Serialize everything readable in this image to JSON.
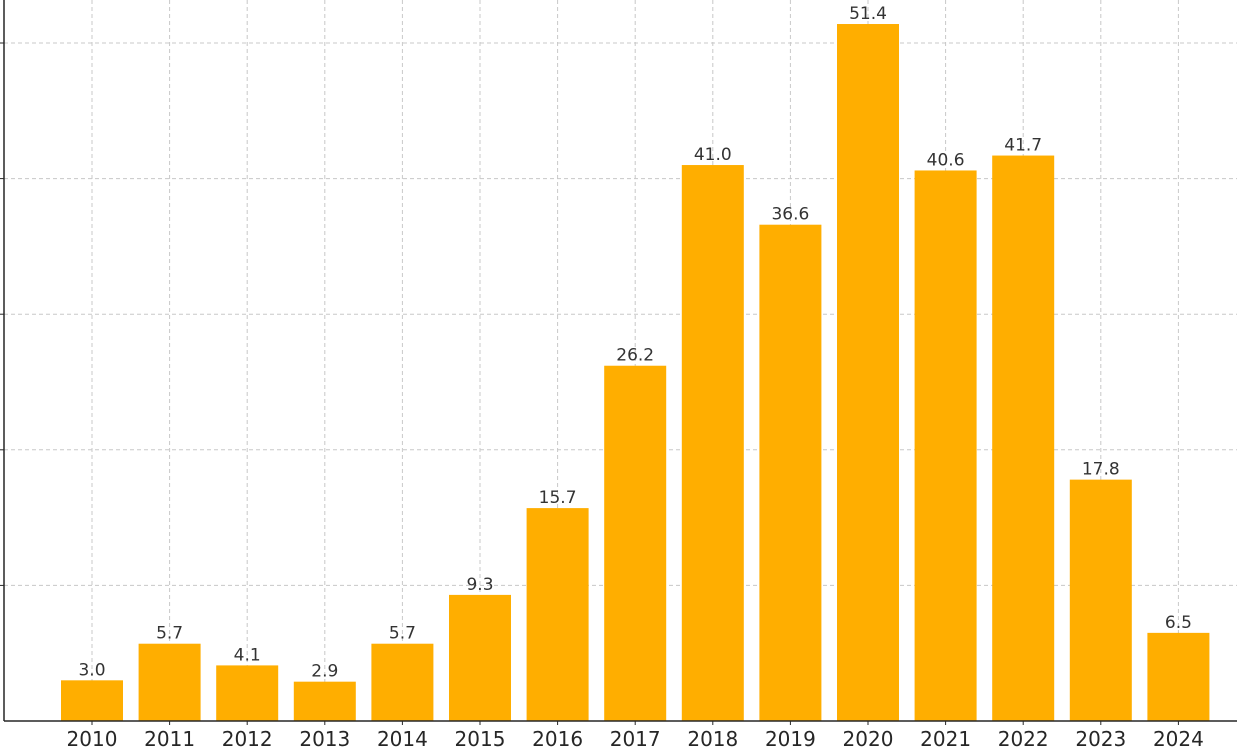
{
  "chart_data": {
    "type": "bar",
    "categories": [
      "2010",
      "2011",
      "2012",
      "2013",
      "2014",
      "2015",
      "2016",
      "2017",
      "2018",
      "2019",
      "2020",
      "2021",
      "2022",
      "2023",
      "2024"
    ],
    "values": [
      3.0,
      5.7,
      4.1,
      2.9,
      5.7,
      9.3,
      15.7,
      26.2,
      41.0,
      36.6,
      51.4,
      40.6,
      41.7,
      17.8,
      6.5
    ],
    "value_labels": [
      "3.0",
      "5.7",
      "4.1",
      "2.9",
      "5.7",
      "9.3",
      "15.7",
      "26.2",
      "41.0",
      "36.6",
      "51.4",
      "40.6",
      "41.7",
      "17.8",
      "6.5"
    ],
    "ylim": [
      0,
      52
    ],
    "y_gridlines": [
      10,
      20,
      30,
      40,
      50
    ],
    "grid": true,
    "colors": {
      "bar": "#FFAE00",
      "grid": "#c8c8c8",
      "axis": "#262626",
      "label": "#333333"
    }
  }
}
